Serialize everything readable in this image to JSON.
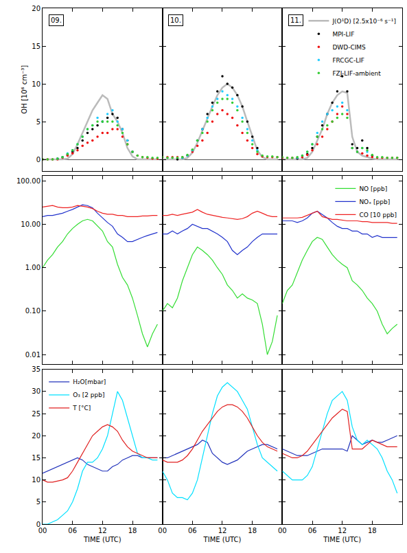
{
  "chart_data": [
    {
      "type": "scatter",
      "ylabel": "OH [10⁶ cm⁻³]",
      "annotations": [
        "09.",
        "10.",
        "11."
      ],
      "x": [
        0,
        1,
        2,
        3,
        4,
        5,
        6,
        7,
        8,
        9,
        10,
        11,
        12,
        13,
        14,
        15,
        16,
        17,
        18,
        19,
        20,
        21,
        22,
        23
      ],
      "xlim": [
        0,
        24
      ],
      "xticks": [
        {
          "value": 0,
          "label": "00"
        },
        {
          "value": 6,
          "label": "06"
        },
        12,
        18
      ],
      "ylim": [
        -1.5,
        20
      ],
      "yticks": [
        0,
        5,
        10,
        15,
        20
      ],
      "tick_labels": "y",
      "legend": "upper-right",
      "series": [
        {
          "name": "J(O¹D) [2.5x10⁻⁶ s⁻¹]",
          "color": "#bbbbbb",
          "type": "line",
          "values": [
            [
              0,
              0,
              0,
              0,
              0,
              0.1,
              0.7,
              2,
              3.5,
              5,
              6.5,
              7.5,
              8.5,
              8,
              6,
              5,
              3.5,
              1.5,
              0.4,
              0,
              0,
              0,
              0,
              0
            ],
            [
              0,
              0,
              0,
              0,
              0,
              0.2,
              0.9,
              2.2,
              3.8,
              5.5,
              7,
              8.5,
              9.5,
              10,
              9.5,
              8.5,
              7,
              5,
              3,
              1.2,
              0.3,
              0,
              0,
              0
            ],
            [
              0,
              0,
              0,
              0,
              0,
              0.2,
              1,
              2.5,
              4,
              6,
              7.5,
              8.5,
              9,
              8.8,
              3,
              1,
              0.5,
              0.3,
              0.1,
              0,
              0,
              0,
              0,
              0
            ]
          ]
        },
        {
          "name": "MPI-LIF",
          "color": "#000000",
          "type": "scatter",
          "marker": "circle",
          "values": [
            [
              null,
              null,
              null,
              0.1,
              0.3,
              0.6,
              1,
              1.5,
              2.5,
              3.5,
              4,
              4.5,
              5,
              5.5,
              6,
              5.5,
              4,
              2.5,
              1,
              null,
              null,
              null,
              null,
              null
            ],
            [
              null,
              null,
              null,
              0,
              0.2,
              0.5,
              1.2,
              2.5,
              4,
              6,
              7.5,
              9,
              11,
              10,
              9.5,
              8.5,
              7,
              5,
              3,
              1.5,
              null,
              null,
              null,
              null
            ],
            [
              null,
              null,
              null,
              0.1,
              0.3,
              0.7,
              1.5,
              3,
              4.5,
              6,
              7.5,
              9,
              11,
              9,
              2,
              1.5,
              2.5,
              1.5,
              0.5,
              null,
              null,
              null,
              null,
              null
            ]
          ]
        },
        {
          "name": "DWD-CIMS",
          "color": "#ee1111",
          "type": "scatter",
          "marker": "circle",
          "values": [
            [
              0,
              0,
              0,
              0,
              0.2,
              0.5,
              0.8,
              1.2,
              1.8,
              2.2,
              2.5,
              3,
              3.5,
              3.5,
              4,
              4,
              3,
              2,
              1,
              0.5,
              0.3,
              0.2,
              0.1,
              0.1
            ],
            [
              0.3,
              0.3,
              0.3,
              0.3,
              0.3,
              0.5,
              1,
              1.8,
              2.5,
              3.5,
              5,
              6,
              6.5,
              6,
              5.5,
              4.5,
              3.5,
              2.5,
              1.5,
              0.7,
              0.4,
              0.3,
              0.3,
              0.3
            ],
            [
              0.2,
              0.2,
              0.2,
              0.2,
              0.3,
              0.6,
              1.2,
              2,
              3,
              4,
              5,
              6,
              7,
              6,
              1.5,
              1,
              0.8,
              0.5,
              0.3,
              0.2,
              0.2,
              0.2,
              0.2,
              0.2
            ]
          ]
        },
        {
          "name": "FRCGC-LIF",
          "color": "#22ccff",
          "type": "scatter",
          "marker": "circle",
          "values": [
            [
              null,
              null,
              null,
              0.1,
              0.3,
              0.8,
              1.2,
              2,
              3,
              4,
              4.5,
              5.5,
              5,
              6,
              6.5,
              5,
              4,
              2.5,
              1,
              null,
              null,
              null,
              null,
              null
            ],
            [
              null,
              null,
              null,
              null,
              0.2,
              0.5,
              1.2,
              2.5,
              4,
              5.5,
              7,
              8,
              9,
              8.5,
              8,
              7,
              5.5,
              4,
              2.5,
              1.2,
              null,
              null,
              null,
              null
            ],
            [
              null,
              null,
              null,
              0.2,
              0.5,
              1,
              2,
              3.5,
              5,
              6,
              6.5,
              7,
              7.5,
              6.5,
              1.5,
              1,
              1.5,
              1,
              null,
              null,
              null,
              null,
              null,
              null
            ]
          ]
        },
        {
          "name": "FZJ-LIF-ambient",
          "color": "#33cc33",
          "type": "scatter",
          "marker": "circle",
          "values": [
            [
              0,
              0,
              0,
              0.1,
              0.3,
              0.7,
              1.2,
              2,
              3,
              4,
              4.5,
              5,
              5,
              5,
              5,
              4.5,
              3.5,
              2,
              1,
              0.5,
              0.3,
              0.3,
              0.2,
              0.2
            ],
            [
              0.3,
              0.2,
              0.2,
              0.2,
              0.3,
              0.6,
              1.3,
              2.5,
              3.5,
              5,
              6.5,
              7.5,
              8,
              8,
              7.5,
              6.5,
              5,
              3.5,
              2,
              1,
              0.5,
              0.4,
              0.4,
              0.3
            ],
            [
              0.3,
              0.2,
              0.2,
              0.3,
              0.5,
              1,
              2,
              3,
              4,
              4.5,
              5,
              5.5,
              6,
              5.5,
              1.5,
              1,
              1.5,
              1.2,
              0.6,
              0.3,
              0.3,
              0.2,
              0.2,
              0.2
            ]
          ]
        }
      ]
    },
    {
      "type": "line",
      "log": "y",
      "x": [
        0,
        1,
        2,
        3,
        4,
        5,
        6,
        7,
        8,
        9,
        10,
        11,
        12,
        13,
        14,
        15,
        16,
        17,
        18,
        19,
        20,
        21,
        22,
        23
      ],
      "xlim": [
        0,
        24
      ],
      "xticks": [
        {
          "value": 0,
          "label": "00"
        },
        {
          "value": 6,
          "label": "06"
        },
        12,
        18
      ],
      "ylim": [
        0.006,
        130
      ],
      "yticks": [
        0.01,
        {
          "value": 0.1,
          "label": "0.10"
        },
        {
          "value": 1,
          "label": "1.00"
        },
        {
          "value": 10,
          "label": "10.00"
        },
        {
          "value": 100,
          "label": "100.00"
        }
      ],
      "tick_labels": "y",
      "legend": "upper-right",
      "series": [
        {
          "name": "NO [ppb]",
          "color": "#33dd33",
          "values": [
            [
              1,
              1.5,
              2,
              3,
              4,
              6,
              8,
              10,
              12,
              13,
              12,
              9,
              7,
              4,
              3,
              1.2,
              0.6,
              0.4,
              0.2,
              0.08,
              0.03,
              0.015,
              0.03,
              0.05
            ],
            [
              0.1,
              0.15,
              0.12,
              0.2,
              0.5,
              1,
              2,
              3,
              2.5,
              2,
              1.5,
              1,
              0.7,
              0.4,
              0.3,
              0.2,
              0.25,
              0.2,
              0.18,
              0.15,
              0.05,
              0.01,
              0.02,
              0.08
            ],
            [
              0.15,
              0.3,
              0.4,
              0.8,
              1.5,
              2.5,
              4,
              5,
              4.5,
              3,
              2,
              1.5,
              1.2,
              1,
              0.5,
              0.4,
              0.3,
              0.2,
              0.15,
              0.1,
              0.05,
              0.03,
              0.04,
              0.05
            ]
          ]
        },
        {
          "name": "NOₓ [ppb]",
          "color": "#2233cc",
          "values": [
            [
              15,
              16,
              16,
              17,
              18,
              20,
              22,
              25,
              28,
              27,
              24,
              18,
              14,
              11,
              9,
              6,
              5,
              4,
              4,
              4.5,
              5,
              5.5,
              6,
              6.5
            ],
            [
              6,
              6,
              7,
              6,
              7,
              8,
              10,
              9,
              8,
              8,
              7,
              6,
              5,
              4,
              2.5,
              2,
              2.5,
              3,
              4,
              5,
              6,
              6,
              6,
              6
            ],
            [
              12,
              12,
              12,
              11,
              12,
              14,
              18,
              20,
              17,
              14,
              11,
              9,
              8,
              8,
              7,
              7,
              6,
              6,
              5,
              5.5,
              5,
              5,
              5,
              5
            ]
          ]
        },
        {
          "name": "CO [10 ppb]",
          "color": "#ee2222",
          "values": [
            [
              25,
              26,
              27,
              25,
              24,
              24,
              25,
              27,
              26,
              25,
              23,
              20,
              18,
              17,
              17,
              16,
              16,
              15,
              15,
              15,
              15.5,
              15.5,
              16,
              16
            ],
            [
              16,
              16,
              17,
              16,
              17,
              18,
              19,
              22,
              19,
              17,
              16,
              15,
              14.5,
              14,
              13.5,
              13,
              13.5,
              15,
              18,
              20,
              18,
              16,
              15,
              15
            ],
            [
              14,
              14,
              14,
              14,
              14.5,
              16,
              18,
              20,
              15,
              14,
              13,
              13,
              12.5,
              12,
              12,
              12,
              11.5,
              11.5,
              11,
              11,
              11,
              11,
              10.5,
              10.5
            ]
          ]
        }
      ]
    },
    {
      "type": "line",
      "xlabel": "TIME (UTC)",
      "x": [
        0,
        1,
        2,
        3,
        4,
        5,
        6,
        7,
        8,
        9,
        10,
        11,
        12,
        13,
        14,
        15,
        16,
        17,
        18,
        19,
        20,
        21,
        22,
        23
      ],
      "xlim": [
        0,
        24
      ],
      "xticks": [
        {
          "value": 0,
          "label": "00"
        },
        {
          "value": 6,
          "label": "06"
        },
        12,
        18
      ],
      "ylim": [
        0,
        35
      ],
      "yticks": [
        0,
        5,
        10,
        15,
        20,
        25,
        30,
        35
      ],
      "legend": "upper-left",
      "series": [
        {
          "name": "H₂O[mbar]",
          "color": "#2233bb",
          "values": [
            [
              11.5,
              12,
              12.5,
              13,
              13.5,
              14,
              14.5,
              15,
              14.5,
              13.5,
              13,
              12.5,
              12,
              12,
              13,
              13.5,
              14.5,
              15,
              15.5,
              15.5,
              15,
              15,
              15,
              15
            ],
            [
              15,
              15,
              15.5,
              16,
              16.5,
              17,
              17.5,
              18,
              19,
              18.5,
              16,
              15,
              14,
              13.5,
              14,
              14.5,
              15.5,
              16.5,
              17,
              17.5,
              18,
              18,
              17.5,
              17
            ],
            [
              17,
              16.5,
              16,
              15.5,
              15.5,
              15.5,
              16,
              16.5,
              17,
              17,
              17,
              17,
              17,
              16.5,
              20,
              19,
              18,
              18.5,
              19,
              18.5,
              18.5,
              19,
              19.5,
              20
            ]
          ]
        },
        {
          "name": "O₃ [2 ppb]",
          "color": "#00e0ff",
          "values": [
            [
              0,
              0,
              0.5,
              1,
              2,
              3,
              5,
              8,
              12,
              14,
              14,
              15,
              17,
              20,
              25,
              30,
              28,
              24,
              20,
              16,
              15,
              15,
              14.5,
              14.5
            ],
            [
              12,
              10,
              7,
              6,
              6,
              5.5,
              7,
              10,
              15,
              20,
              25,
              29,
              31,
              32,
              31,
              30,
              28,
              26,
              22,
              18,
              15,
              14,
              13,
              12
            ],
            [
              12,
              11,
              10,
              10,
              10,
              11,
              13,
              17,
              21,
              25,
              28,
              29,
              30,
              28,
              22,
              19,
              18,
              19,
              18,
              17,
              15,
              12,
              10,
              7
            ]
          ]
        },
        {
          "name": "T [°C]",
          "color": "#e02020",
          "values": [
            [
              10,
              9.5,
              9.5,
              9.8,
              10,
              10.5,
              12,
              14,
              16,
              18,
              20,
              21,
              22,
              22.5,
              22,
              21,
              19,
              17.5,
              16.5,
              16,
              15.5,
              15,
              15,
              15
            ],
            [
              14.5,
              14,
              14,
              14,
              14.5,
              15.5,
              17,
              19,
              21,
              22.5,
              24,
              25.5,
              26.5,
              27,
              27,
              26.5,
              25.5,
              24,
              22,
              20,
              18.5,
              17.5,
              17,
              16.5
            ],
            [
              16,
              15.5,
              15,
              15,
              15.5,
              16.5,
              18,
              19.5,
              21,
              22.5,
              24,
              25,
              26,
              25.5,
              17,
              17,
              17,
              18,
              19,
              18.5,
              18,
              17.5,
              17.5,
              17.5
            ]
          ]
        }
      ]
    }
  ]
}
